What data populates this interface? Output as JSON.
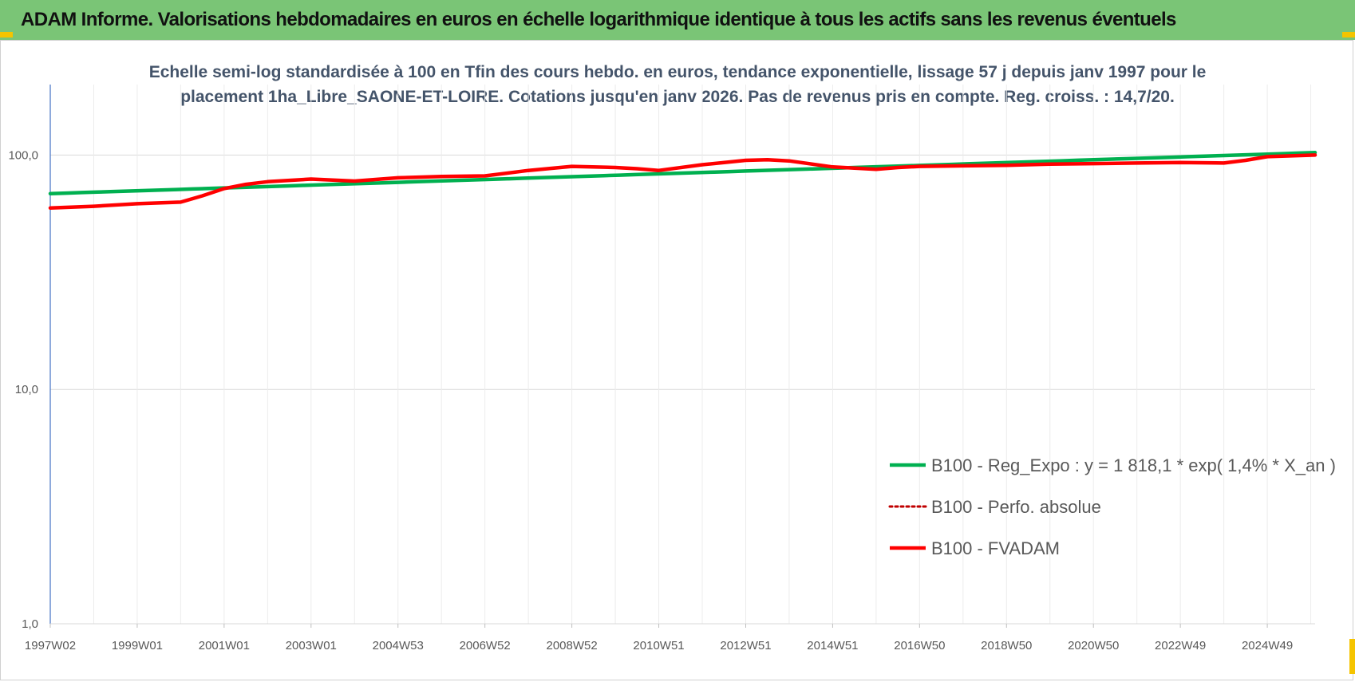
{
  "banner": {
    "title": "ADAM Informe. Valorisations hebdomadaires en euros en échelle logarithmique identique à tous les actifs sans les revenus éventuels"
  },
  "colors": {
    "banner": "#7ac576",
    "reg_series": "#00b050",
    "fvadam_series": "#ff0000",
    "perfo_series": "#c00000",
    "title_text": "#44546a",
    "corner_accent": "#f5c400"
  },
  "chart_data": {
    "type": "line",
    "title_lines": [
      "Echelle semi-log standardisée à 100 en Tfin des cours hebdo. en euros, tendance exponentielle, lissage 57 j depuis janv 1997 pour le",
      "placement 1ha_Libre_SAONE-ET-LOIRE. Cotations jusqu'en janv 2026. Pas de revenus pris en compte. Reg. croiss. : 14,7/20."
    ],
    "y_scale": "log",
    "ylim": [
      1,
      200
    ],
    "y_ticks": [
      {
        "value": 1,
        "label": "1,0"
      },
      {
        "value": 10,
        "label": "10,0"
      },
      {
        "value": 100,
        "label": "100,0"
      }
    ],
    "x_range": [
      1997.0,
      2026.1
    ],
    "x_ticks": [
      {
        "value": 1997.0,
        "label": "1997W02"
      },
      {
        "value": 1999.0,
        "label": "1999W01"
      },
      {
        "value": 2001.0,
        "label": "2001W01"
      },
      {
        "value": 2003.0,
        "label": "2003W01"
      },
      {
        "value": 2005.0,
        "label": "2004W53"
      },
      {
        "value": 2007.0,
        "label": "2006W52"
      },
      {
        "value": 2009.0,
        "label": "2008W52"
      },
      {
        "value": 2011.0,
        "label": "2010W51"
      },
      {
        "value": 2013.0,
        "label": "2012W51"
      },
      {
        "value": 2015.0,
        "label": "2014W51"
      },
      {
        "value": 2017.0,
        "label": "2016W50"
      },
      {
        "value": 2019.0,
        "label": "2018W50"
      },
      {
        "value": 2021.0,
        "label": "2020W50"
      },
      {
        "value": 2023.0,
        "label": "2022W49"
      },
      {
        "value": 2025.0,
        "label": "2024W49"
      }
    ],
    "grid": true,
    "legend_position": "bottom-right",
    "series": [
      {
        "name": "B100 - Reg_Expo : y = 1 818,1 * exp( 1,4% *  X_an )",
        "style": "solid-green",
        "x": [
          1997.0,
          2026.1
        ],
        "y": [
          68.5,
          102.5
        ]
      },
      {
        "name": "B100 - Perfo. absolue",
        "style": "dotted-red",
        "x": [],
        "y": []
      },
      {
        "name": "B100 - FVADAM",
        "style": "solid-red",
        "x": [
          1997.0,
          1998.0,
          1999.0,
          2000.0,
          2000.5,
          2001.0,
          2001.5,
          2002.0,
          2003.0,
          2004.0,
          2005.0,
          2006.0,
          2007.0,
          2008.0,
          2009.0,
          2010.0,
          2010.5,
          2011.0,
          2012.0,
          2013.0,
          2013.5,
          2014.0,
          2015.0,
          2016.0,
          2016.5,
          2017.0,
          2018.0,
          2019.0,
          2020.0,
          2021.0,
          2022.0,
          2023.0,
          2024.0,
          2024.5,
          2025.0,
          2026.1
        ],
        "y": [
          59.5,
          60.5,
          62.0,
          63.0,
          67.0,
          72.0,
          75.0,
          77.0,
          79.0,
          77.5,
          80.0,
          81.0,
          81.5,
          86.0,
          89.5,
          88.5,
          87.5,
          86.0,
          91.0,
          95.0,
          95.5,
          94.5,
          89.0,
          87.0,
          88.5,
          89.5,
          90.0,
          90.5,
          91.5,
          92.0,
          92.5,
          93.0,
          92.5,
          95.0,
          98.5,
          100.0
        ]
      }
    ]
  }
}
